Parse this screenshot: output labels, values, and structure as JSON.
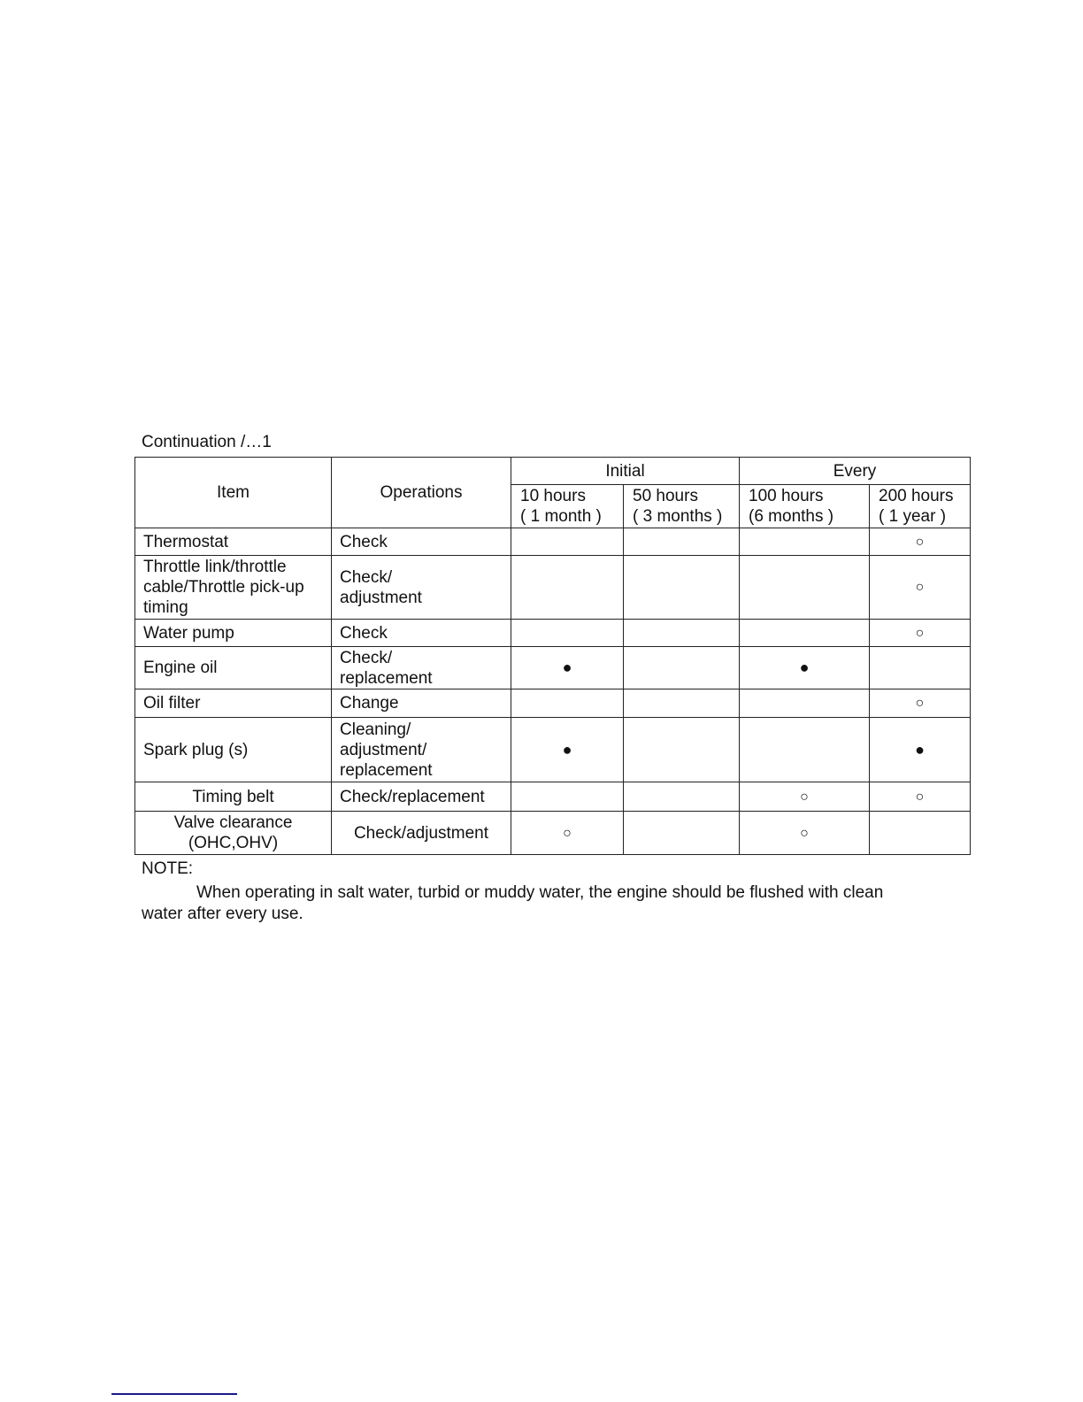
{
  "caption": "Continuation /…1",
  "table": {
    "headers": {
      "item": "Item",
      "operations": "Operations",
      "group_initial": "Initial",
      "group_every": "Every",
      "intervals": [
        {
          "hours": "10 hours",
          "period": "( 1 month )"
        },
        {
          "hours": "50 hours",
          "period": "( 3 months )"
        },
        {
          "hours": "100 hours",
          "period": "(6 months )"
        },
        {
          "hours": "200 hours",
          "period": "( 1 year )"
        }
      ]
    },
    "rows": [
      {
        "item": "Thermostat",
        "operation": "Check",
        "marks": [
          "",
          "",
          "",
          "○"
        ]
      },
      {
        "item": "Throttle link/throttle cable/Throttle pick-up timing",
        "operation": "Check/ adjustment",
        "marks": [
          "",
          "",
          "",
          "○"
        ]
      },
      {
        "item": "Water pump",
        "operation": "Check",
        "marks": [
          "",
          "",
          "",
          "○"
        ]
      },
      {
        "item": "Engine oil",
        "operation": "Check/ replacement",
        "marks": [
          "●",
          "",
          "●",
          ""
        ]
      },
      {
        "item": "Oil filter",
        "operation": "Change",
        "marks": [
          "",
          "",
          "",
          "○"
        ]
      },
      {
        "item": "Spark plug (s)",
        "operation": "Cleaning/ adjustment/ replacement",
        "marks": [
          "●",
          "",
          "",
          "●"
        ]
      },
      {
        "item": "Timing belt",
        "operation": "Check/replacement",
        "marks": [
          "",
          "",
          "○",
          "○"
        ]
      },
      {
        "item": "Valve clearance (OHC,OHV)",
        "operation": "Check/adjustment",
        "marks": [
          "○",
          "",
          "○",
          ""
        ]
      }
    ]
  },
  "note": {
    "label": "NOTE:",
    "text": "When operating in salt water, turbid or muddy water, the engine should be flushed with clean water after every use."
  },
  "colors": {
    "footer_line": "#1a1a8c"
  }
}
